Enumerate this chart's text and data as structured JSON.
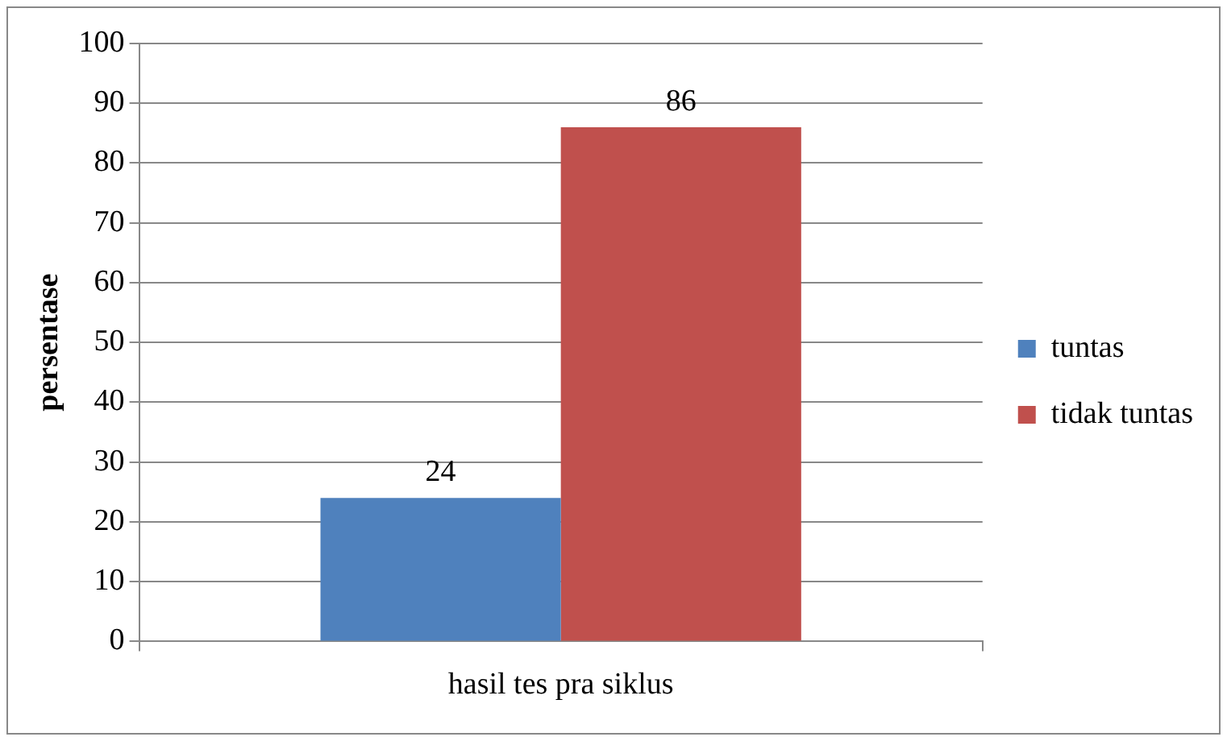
{
  "chart_data": {
    "type": "bar",
    "categories": [
      "hasil tes pra siklus"
    ],
    "series": [
      {
        "name": "tuntas",
        "color": "#4f81bd",
        "values": [
          24
        ]
      },
      {
        "name": "tidak tuntas",
        "color": "#c0504d",
        "values": [
          86
        ]
      }
    ],
    "ylabel": "persentase",
    "ylim": [
      0,
      100
    ],
    "yticks": [
      0,
      10,
      20,
      30,
      40,
      50,
      60,
      70,
      80,
      90,
      100
    ],
    "grid": "y",
    "legend": "right",
    "data_labels": true
  }
}
